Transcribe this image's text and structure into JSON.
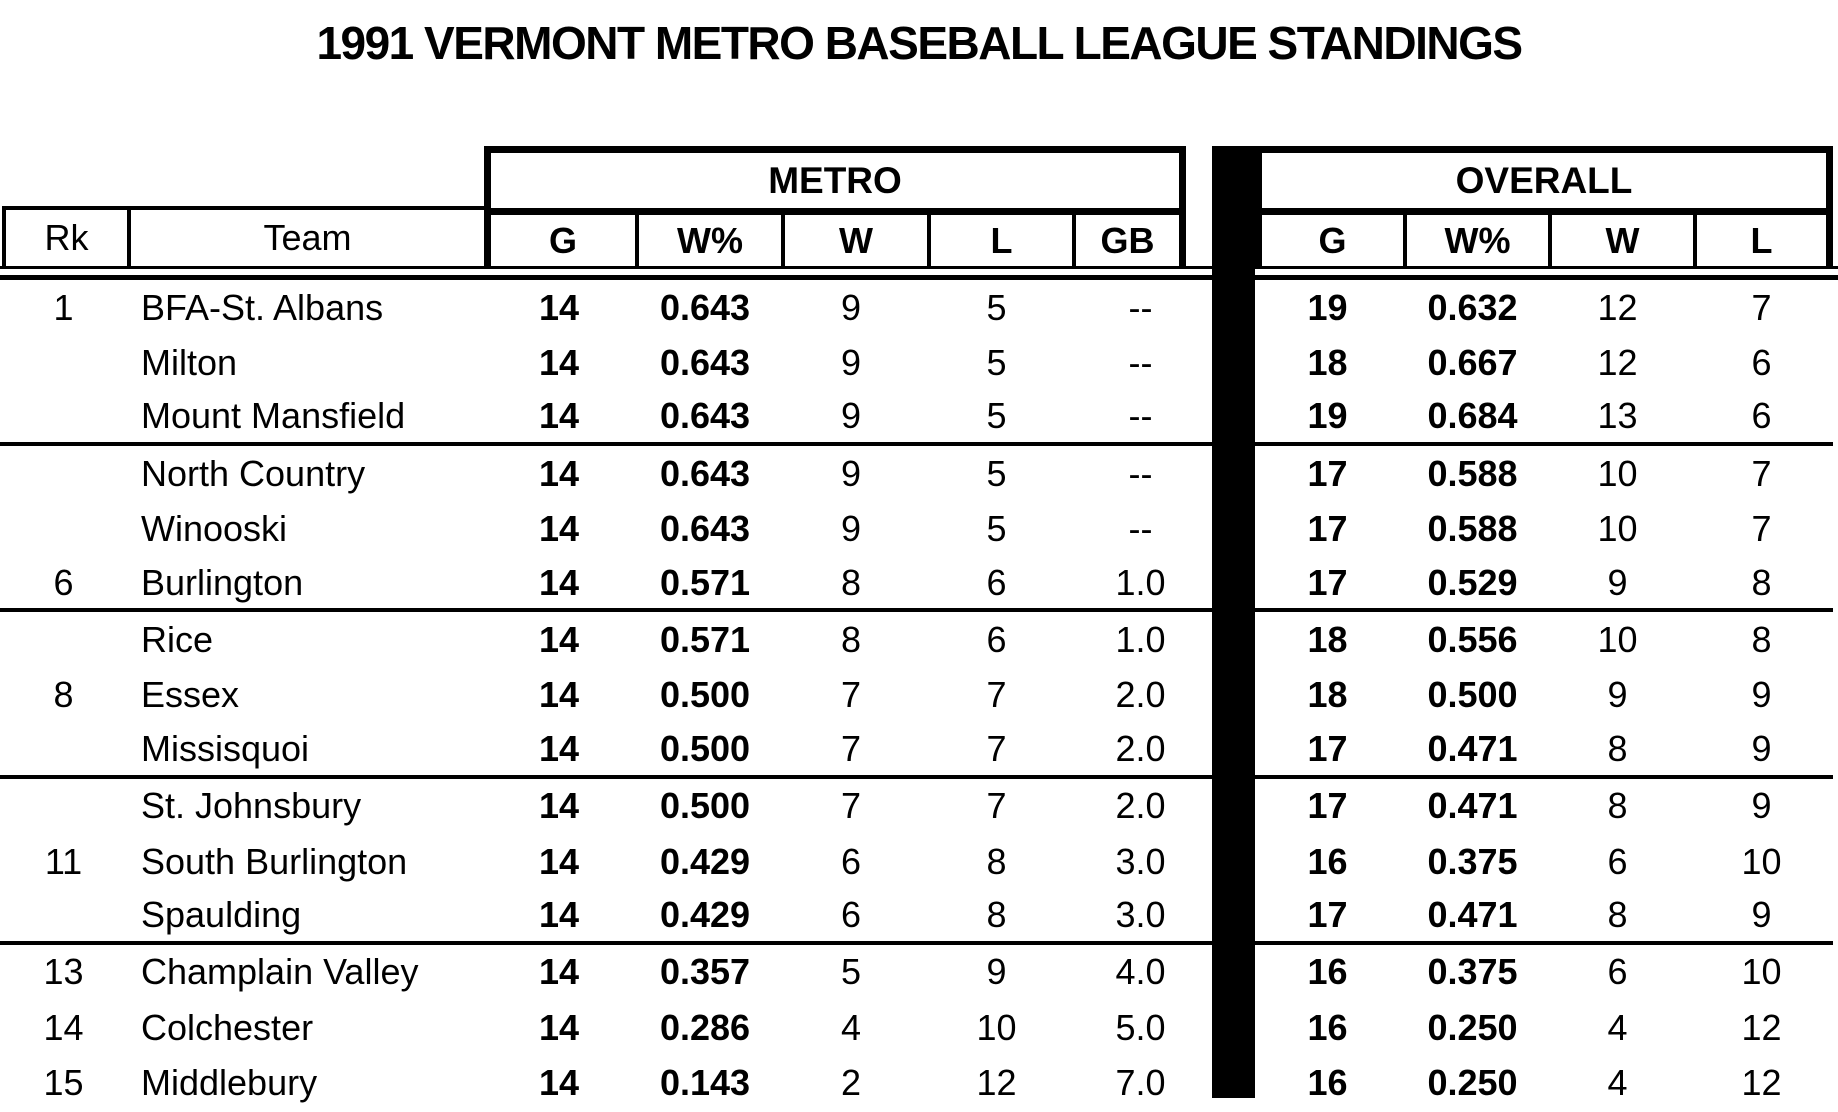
{
  "title": "1991 VERMONT METRO BASEBALL LEAGUE STANDINGS",
  "colors": {
    "background": "#ffffff",
    "text": "#000000",
    "divider_bar": "#000000"
  },
  "table": {
    "rank_header": "Rk",
    "team_header": "Team",
    "metro": {
      "label": "METRO",
      "columns": [
        "G",
        "W%",
        "W",
        "L",
        "GB"
      ]
    },
    "overall": {
      "label": "OVERALL",
      "columns": [
        "G",
        "W%",
        "W",
        "L"
      ]
    },
    "rows": [
      {
        "rk": "1",
        "team": "BFA-St. Albans",
        "m_g": "14",
        "m_wpct": "0.643",
        "m_w": "9",
        "m_l": "5",
        "m_gb": "--",
        "o_g": "19",
        "o_wpct": "0.632",
        "o_w": "12",
        "o_l": "7",
        "group_end": false
      },
      {
        "rk": "",
        "team": "Milton",
        "m_g": "14",
        "m_wpct": "0.643",
        "m_w": "9",
        "m_l": "5",
        "m_gb": "--",
        "o_g": "18",
        "o_wpct": "0.667",
        "o_w": "12",
        "o_l": "6",
        "group_end": false
      },
      {
        "rk": "",
        "team": "Mount Mansfield",
        "m_g": "14",
        "m_wpct": "0.643",
        "m_w": "9",
        "m_l": "5",
        "m_gb": "--",
        "o_g": "19",
        "o_wpct": "0.684",
        "o_w": "13",
        "o_l": "6",
        "group_end": true
      },
      {
        "rk": "",
        "team": "North Country",
        "m_g": "14",
        "m_wpct": "0.643",
        "m_w": "9",
        "m_l": "5",
        "m_gb": "--",
        "o_g": "17",
        "o_wpct": "0.588",
        "o_w": "10",
        "o_l": "7",
        "group_end": false
      },
      {
        "rk": "",
        "team": "Winooski",
        "m_g": "14",
        "m_wpct": "0.643",
        "m_w": "9",
        "m_l": "5",
        "m_gb": "--",
        "o_g": "17",
        "o_wpct": "0.588",
        "o_w": "10",
        "o_l": "7",
        "group_end": false
      },
      {
        "rk": "6",
        "team": "Burlington",
        "m_g": "14",
        "m_wpct": "0.571",
        "m_w": "8",
        "m_l": "6",
        "m_gb": "1.0",
        "o_g": "17",
        "o_wpct": "0.529",
        "o_w": "9",
        "o_l": "8",
        "group_end": true
      },
      {
        "rk": "",
        "team": "Rice",
        "m_g": "14",
        "m_wpct": "0.571",
        "m_w": "8",
        "m_l": "6",
        "m_gb": "1.0",
        "o_g": "18",
        "o_wpct": "0.556",
        "o_w": "10",
        "o_l": "8",
        "group_end": false
      },
      {
        "rk": "8",
        "team": "Essex",
        "m_g": "14",
        "m_wpct": "0.500",
        "m_w": "7",
        "m_l": "7",
        "m_gb": "2.0",
        "o_g": "18",
        "o_wpct": "0.500",
        "o_w": "9",
        "o_l": "9",
        "group_end": false
      },
      {
        "rk": "",
        "team": "Missisquoi",
        "m_g": "14",
        "m_wpct": "0.500",
        "m_w": "7",
        "m_l": "7",
        "m_gb": "2.0",
        "o_g": "17",
        "o_wpct": "0.471",
        "o_w": "8",
        "o_l": "9",
        "group_end": true
      },
      {
        "rk": "",
        "team": "St. Johnsbury",
        "m_g": "14",
        "m_wpct": "0.500",
        "m_w": "7",
        "m_l": "7",
        "m_gb": "2.0",
        "o_g": "17",
        "o_wpct": "0.471",
        "o_w": "8",
        "o_l": "9",
        "group_end": false
      },
      {
        "rk": "11",
        "team": "South Burlington",
        "m_g": "14",
        "m_wpct": "0.429",
        "m_w": "6",
        "m_l": "8",
        "m_gb": "3.0",
        "o_g": "16",
        "o_wpct": "0.375",
        "o_w": "6",
        "o_l": "10",
        "group_end": false
      },
      {
        "rk": "",
        "team": "Spaulding",
        "m_g": "14",
        "m_wpct": "0.429",
        "m_w": "6",
        "m_l": "8",
        "m_gb": "3.0",
        "o_g": "17",
        "o_wpct": "0.471",
        "o_w": "8",
        "o_l": "9",
        "group_end": true
      },
      {
        "rk": "13",
        "team": "Champlain Valley",
        "m_g": "14",
        "m_wpct": "0.357",
        "m_w": "5",
        "m_l": "9",
        "m_gb": "4.0",
        "o_g": "16",
        "o_wpct": "0.375",
        "o_w": "6",
        "o_l": "10",
        "group_end": false
      },
      {
        "rk": "14",
        "team": "Colchester",
        "m_g": "14",
        "m_wpct": "0.286",
        "m_w": "4",
        "m_l": "10",
        "m_gb": "5.0",
        "o_g": "16",
        "o_wpct": "0.250",
        "o_w": "4",
        "o_l": "12",
        "group_end": false
      },
      {
        "rk": "15",
        "team": "Middlebury",
        "m_g": "14",
        "m_wpct": "0.143",
        "m_w": "2",
        "m_l": "12",
        "m_gb": "7.0",
        "o_g": "16",
        "o_wpct": "0.250",
        "o_w": "4",
        "o_l": "12",
        "group_end": false
      }
    ]
  }
}
